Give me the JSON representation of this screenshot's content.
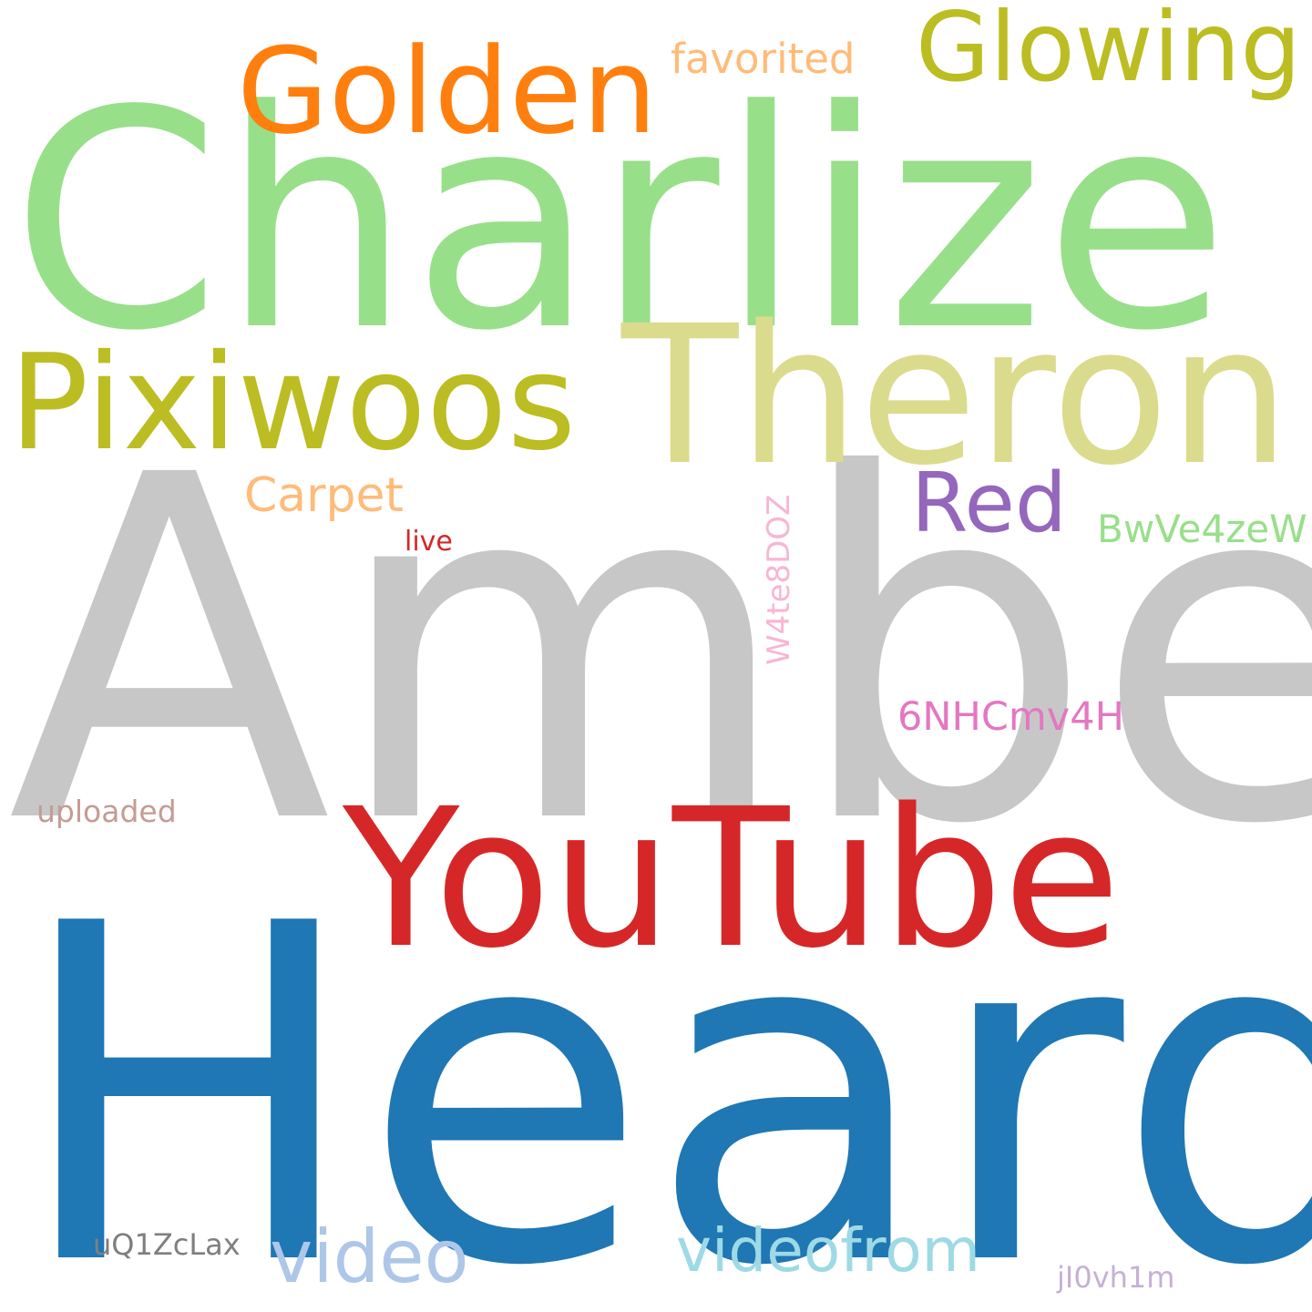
{
  "background": "#ffffff",
  "words": [
    {
      "text": "Heard",
      "color": "#1f77b4"
    },
    {
      "text": "Amber",
      "color": "#c7c7c7"
    },
    {
      "text": "Charlize",
      "color": "#98df8a"
    },
    {
      "text": "Theron",
      "color": "#dbdb8d"
    },
    {
      "text": "YouTube",
      "color": "#d62728"
    },
    {
      "text": "Pixiwoos",
      "color": "#bcbd22"
    },
    {
      "text": "Golden",
      "color": "#ff7f0e"
    },
    {
      "text": "Glowing",
      "color": "#bcbd22"
    },
    {
      "text": "Red",
      "color": "#9467bd"
    },
    {
      "text": "videofrom",
      "color": "#9edae5"
    },
    {
      "text": "video",
      "color": "#aec7e8"
    },
    {
      "text": "Carpet",
      "color": "#ffbb78"
    },
    {
      "text": "favorited",
      "color": "#ffbb78"
    },
    {
      "text": "BwVe4zeW",
      "color": "#98df8a"
    },
    {
      "text": "6NHCmv4H",
      "color": "#e377c2"
    },
    {
      "text": "W4te8DOZ",
      "color": "#f7b6d2"
    },
    {
      "text": "live",
      "color": "#d62728"
    },
    {
      "text": "uploaded",
      "color": "#c49c94"
    },
    {
      "text": "uQ1ZcLax",
      "color": "#7f7f7f"
    },
    {
      "text": "jI0vh1m",
      "color": "#c5b0d5"
    }
  ]
}
